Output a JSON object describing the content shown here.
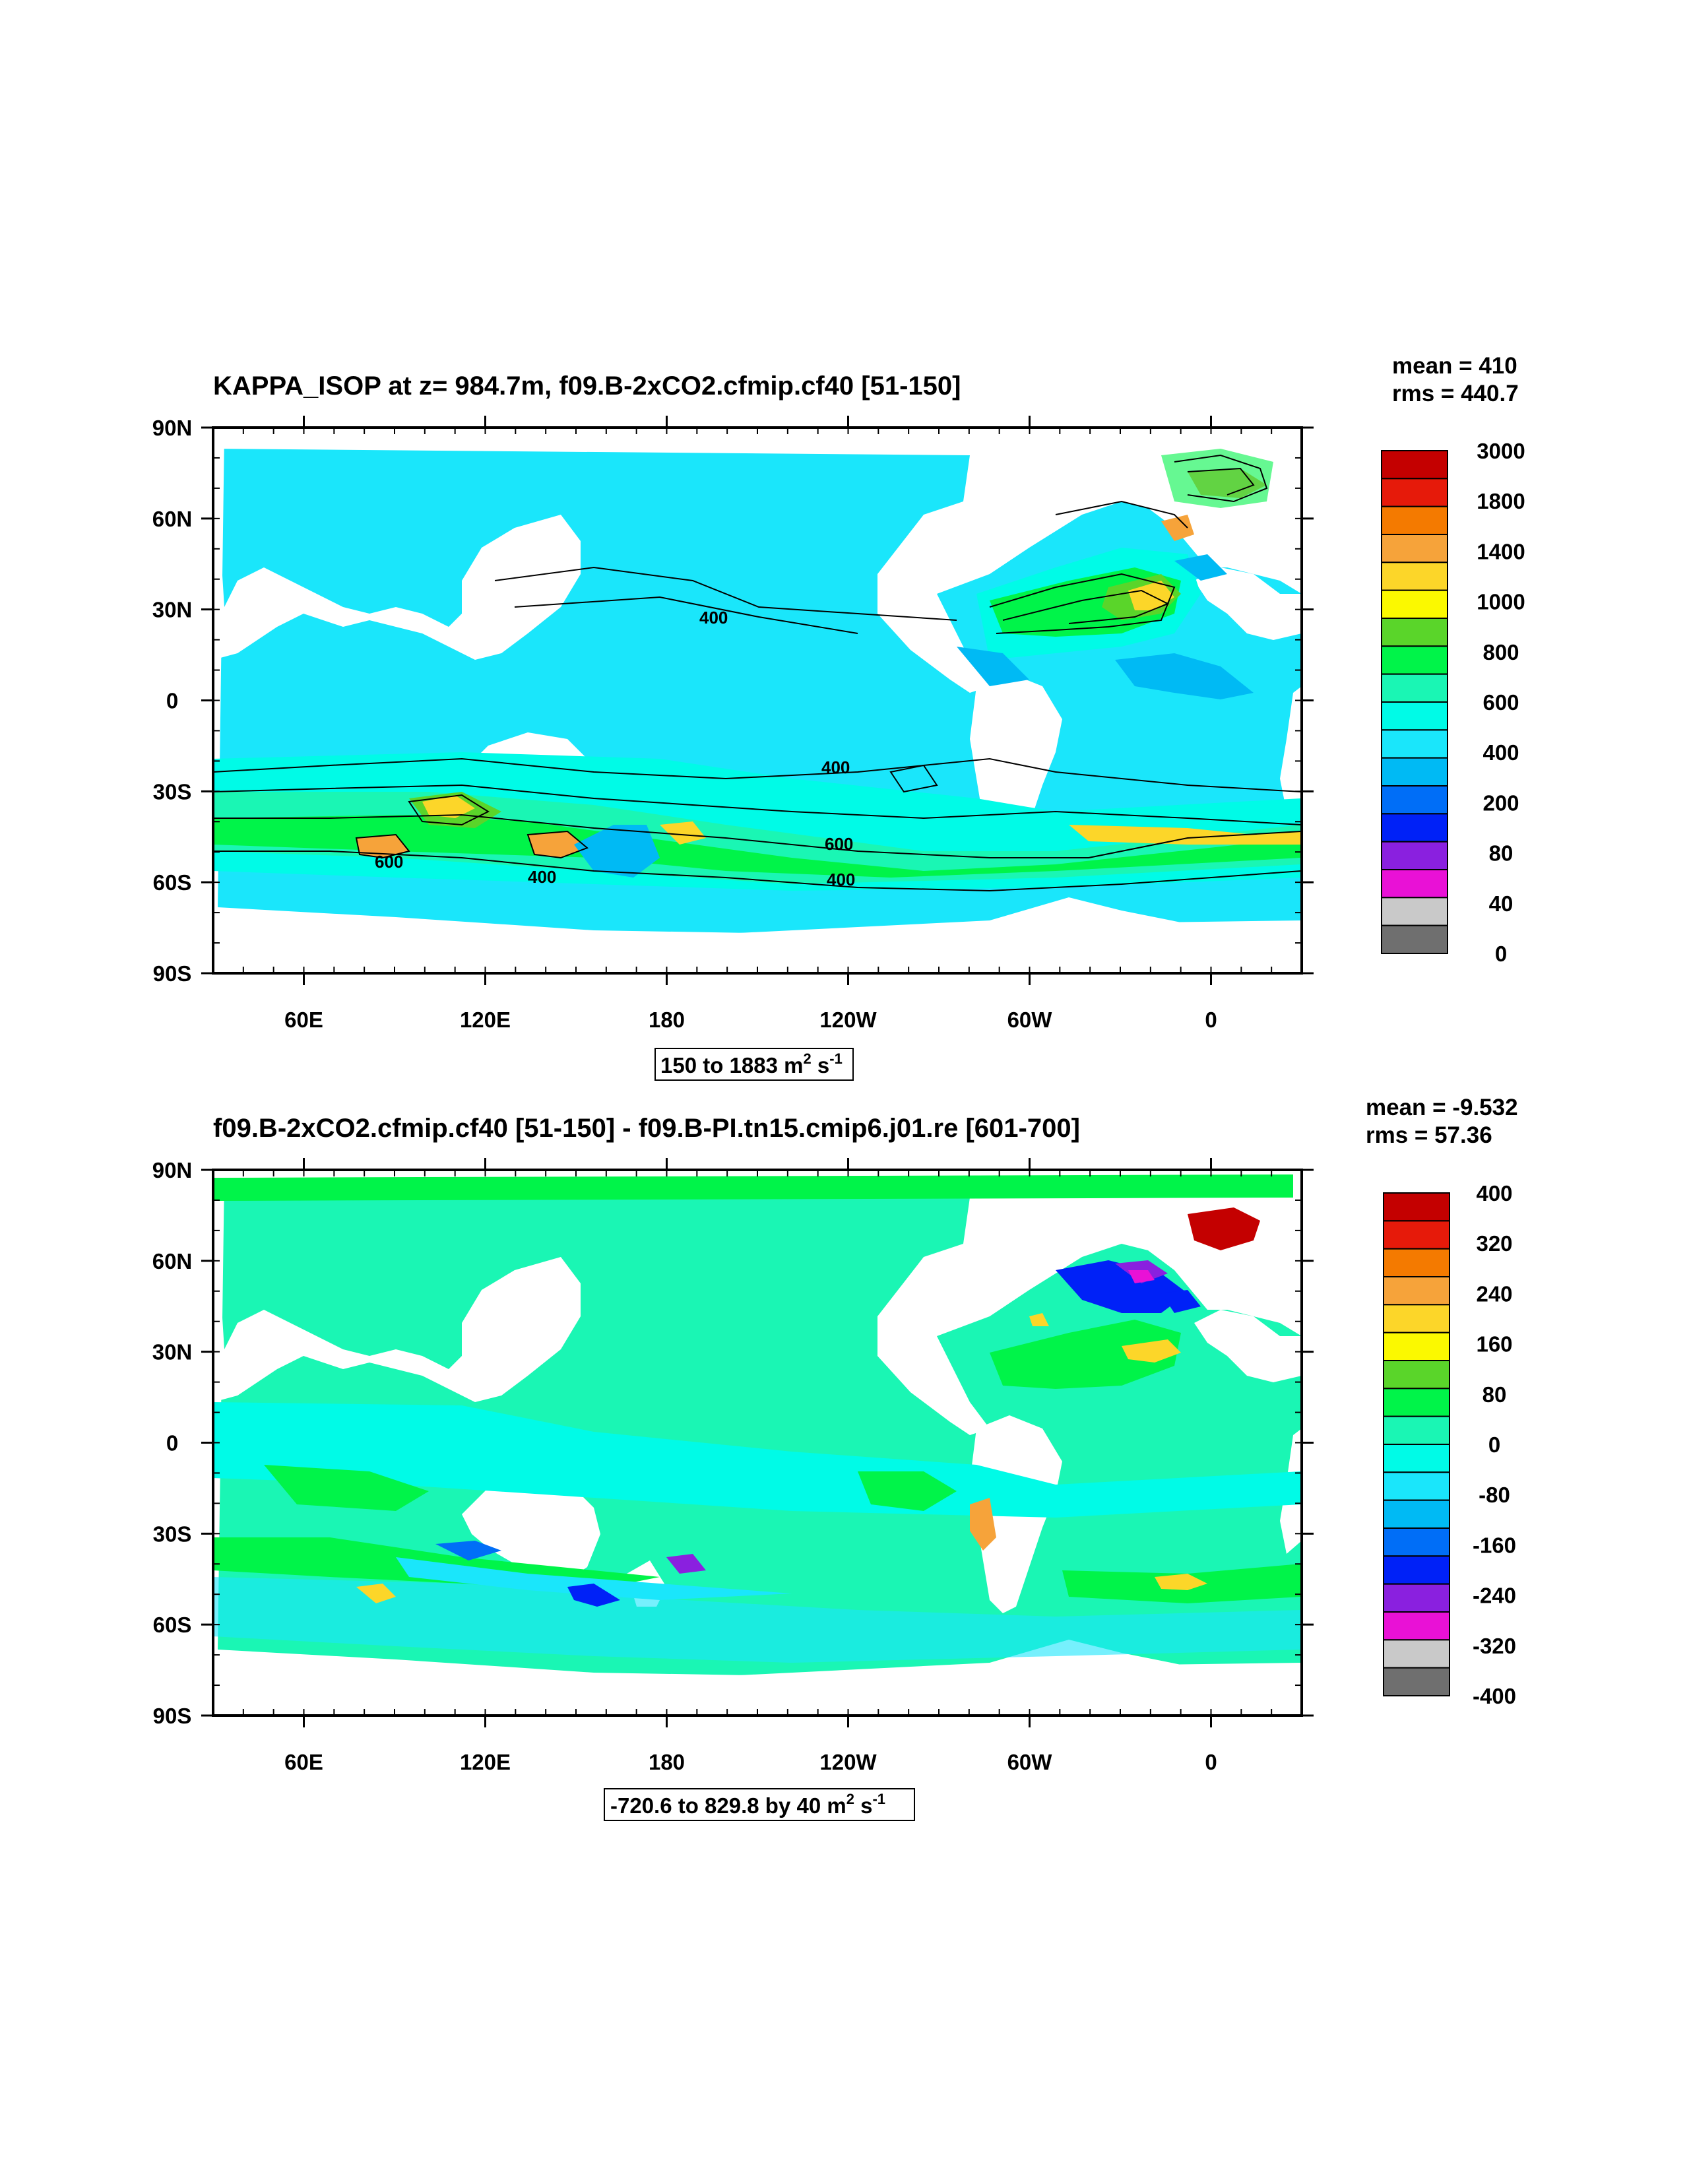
{
  "panels": [
    {
      "title": "KAPPA_ISOP at z= 984.7m, f09.B-2xCO2.cfmip.cf40 [51-150]",
      "mean": "mean = 410",
      "rms": "rms = 440.7",
      "range_main": "150 to 1883 m",
      "range_sup1": "2",
      "range_mid": " s",
      "range_sup2": "-1",
      "colorbar_labels": [
        "3000",
        "1800",
        "1400",
        "1000",
        "800",
        "600",
        "400",
        "200",
        "80",
        "40",
        "0"
      ],
      "contour_labels": [
        "400",
        "400",
        "600",
        "600",
        "400",
        "400"
      ]
    },
    {
      "title": "f09.B-2xCO2.cfmip.cf40 [51-150] - f09.B-PI.tn15.cmip6.j01.re [601-700]",
      "mean": "mean = -9.532",
      "rms": "rms = 57.36",
      "range_main": "-720.6 to 829.8 by 40 m",
      "range_sup1": "2",
      "range_mid": " s",
      "range_sup2": "-1",
      "colorbar_labels": [
        "400",
        "320",
        "240",
        "160",
        "80",
        "0",
        "-80",
        "-160",
        "-240",
        "-320",
        "-400"
      ]
    }
  ],
  "lat_labels": [
    "90N",
    "60N",
    "30N",
    "0",
    "30S",
    "60S",
    "90S"
  ],
  "lon_labels": [
    "60E",
    "120E",
    "180",
    "120W",
    "60W",
    "0"
  ],
  "colorbars": {
    "panel1_colors": [
      "#c40000",
      "#e61a0a",
      "#f47a00",
      "#f6a33a",
      "#fcd629",
      "#fbf900",
      "#5ad52a",
      "#00f449",
      "#1af6b4",
      "#00fbe7",
      "#1ae6fb",
      "#00baf4",
      "#006ef7",
      "#0021f7",
      "#8a20df",
      "#e911d6",
      "#c9c9c9",
      "#6f6f6f"
    ],
    "panel2_colors": [
      "#c40000",
      "#e61a0a",
      "#f47a00",
      "#f6a33a",
      "#fcd629",
      "#fbf900",
      "#5ad52a",
      "#00f449",
      "#1af6b4",
      "#00fbe7",
      "#1ae6fb",
      "#00baf4",
      "#006ef7",
      "#0021f7",
      "#8a20df",
      "#e911d6",
      "#c9c9c9",
      "#6f6f6f"
    ]
  },
  "chart_data": [
    {
      "type": "heatmap",
      "title": "KAPPA_ISOP at z= 984.7m, f09.B-2xCO2.cfmip.cf40 [51-150]",
      "units": "m2 s-1",
      "lat_range": [
        -90,
        90
      ],
      "lon_range": [
        30,
        390
      ],
      "mean": 410,
      "rms": 440.7,
      "data_range": [
        150,
        1883
      ],
      "levels": [
        0,
        40,
        80,
        200,
        400,
        600,
        800,
        1000,
        1400,
        1800,
        3000
      ]
    },
    {
      "type": "heatmap",
      "title": "f09.B-2xCO2.cfmip.cf40 [51-150] - f09.B-PI.tn15.cmip6.j01.re [601-700]",
      "units": "m2 s-1",
      "lat_range": [
        -90,
        90
      ],
      "lon_range": [
        30,
        390
      ],
      "mean": -9.532,
      "rms": 57.36,
      "data_range": [
        -720.6,
        829.8
      ],
      "interval": 40,
      "levels": [
        -400,
        -320,
        -240,
        -160,
        -80,
        0,
        80,
        160,
        240,
        320,
        400
      ]
    }
  ]
}
